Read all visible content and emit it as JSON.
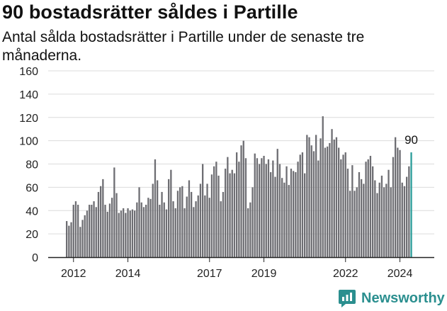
{
  "title": "90 bostadsrätter såldes i Partille",
  "subtitle": "Antal sålda bostadsrätter i Partille under de senaste tre månaderna.",
  "brand": {
    "name": "Newsworthy",
    "icon": "newsworthy-logo-icon"
  },
  "colors": {
    "bar": "#6e6e73",
    "highlight": "#2a9d9a",
    "grid": "#dcdcdc",
    "axis": "#222222",
    "brand": "#2b8f8f"
  },
  "chart_data": {
    "type": "bar",
    "xlabel": "",
    "ylabel": "",
    "ylim": [
      0,
      160
    ],
    "y_ticks": [
      0,
      20,
      40,
      60,
      80,
      100,
      120,
      140,
      160
    ],
    "x_ticks": [
      "2012",
      "2014",
      "2017",
      "2019",
      "2022",
      "2024"
    ],
    "x_tick_index": [
      3,
      27,
      63,
      87,
      123,
      147
    ],
    "grid": true,
    "highlight_label": "90",
    "values": [
      31,
      27,
      30,
      45,
      48,
      45,
      26,
      32,
      36,
      40,
      45,
      45,
      48,
      43,
      56,
      61,
      67,
      45,
      39,
      46,
      51,
      77,
      55,
      38,
      40,
      42,
      38,
      42,
      40,
      41,
      40,
      47,
      60,
      47,
      43,
      45,
      51,
      50,
      63,
      84,
      66,
      45,
      56,
      47,
      41,
      67,
      75,
      48,
      42,
      57,
      60,
      61,
      42,
      52,
      66,
      56,
      43,
      48,
      53,
      63,
      80,
      53,
      63,
      51,
      71,
      78,
      82,
      70,
      48,
      56,
      76,
      86,
      72,
      75,
      72,
      90,
      82,
      96,
      100,
      85,
      42,
      47,
      60,
      89,
      85,
      80,
      85,
      87,
      80,
      84,
      73,
      83,
      69,
      93,
      80,
      68,
      64,
      78,
      62,
      76,
      74,
      73,
      82,
      88,
      90,
      72,
      105,
      103,
      96,
      91,
      105,
      83,
      102,
      121,
      94,
      95,
      98,
      110,
      101,
      103,
      94,
      84,
      88,
      90,
      76,
      57,
      79,
      57,
      60,
      73,
      67,
      63,
      82,
      84,
      87,
      78,
      66,
      55,
      64,
      70,
      60,
      63,
      75,
      60,
      86,
      103,
      94,
      92,
      64,
      61,
      69,
      78,
      90
    ]
  }
}
